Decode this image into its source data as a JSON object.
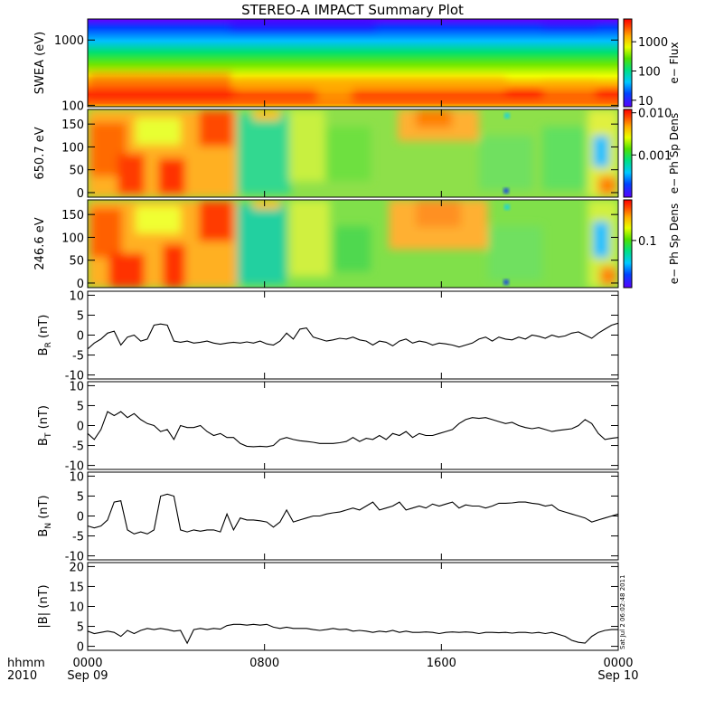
{
  "title": "STEREO-A IMPACT Summary Plot",
  "stamp": "Sat Jul  2 06:02:48 2011",
  "colors": {
    "axis": "#000000",
    "line": "#000000",
    "background": "#ffffff"
  },
  "x_axis": {
    "range": [
      0,
      24
    ],
    "ticks": [
      {
        "value": 0,
        "label": "0000",
        "sublabel": "Sep 09"
      },
      {
        "value": 8,
        "label": "0800",
        "sublabel": ""
      },
      {
        "value": 16,
        "label": "1600",
        "sublabel": ""
      },
      {
        "value": 24,
        "label": "0000",
        "sublabel": "Sep 10"
      }
    ],
    "corner_label": "hhmm",
    "corner_year": "2010"
  },
  "chart_data": [
    {
      "type": "heatmap",
      "ylabel": "SWEA (eV)",
      "y_scale": "log",
      "ylim": [
        95,
        2100
      ],
      "y_ticks": [
        {
          "value": 100,
          "label": "100"
        },
        {
          "value": 1000,
          "label": "1000"
        }
      ],
      "colorbar": {
        "label": "e− Flux",
        "scale": "log",
        "range": [
          6,
          6000
        ],
        "ticks": [
          {
            "value": 10,
            "label": "10"
          },
          {
            "value": 100,
            "label": "100"
          },
          {
            "value": 1000,
            "label": "1000"
          }
        ]
      }
    },
    {
      "type": "heatmap",
      "ylabel": "650.7 eV",
      "ylim": [
        -10,
        182
      ],
      "y_ticks": [
        {
          "value": 0,
          "label": "0"
        },
        {
          "value": 50,
          "label": "50"
        },
        {
          "value": 100,
          "label": "100"
        },
        {
          "value": 150,
          "label": "150"
        }
      ],
      "colorbar": {
        "label": "e− Ph Sp Dens",
        "scale": "log",
        "range": [
          0.0001,
          0.012
        ],
        "ticks": [
          {
            "value": 0.001,
            "label": "0.001"
          },
          {
            "value": 0.01,
            "label": "0.010"
          }
        ]
      }
    },
    {
      "type": "heatmap",
      "ylabel": "246.6 eV",
      "ylim": [
        -10,
        182
      ],
      "y_ticks": [
        {
          "value": 0,
          "label": "0"
        },
        {
          "value": 50,
          "label": "50"
        },
        {
          "value": 100,
          "label": "100"
        },
        {
          "value": 150,
          "label": "150"
        }
      ],
      "colorbar": {
        "label": "e− Ph Sp Dens",
        "scale": "log",
        "range": [
          0.02,
          0.4
        ],
        "ticks": [
          {
            "value": 0.1,
            "label": "0.1"
          }
        ]
      }
    },
    {
      "type": "line",
      "ylabel_main": "B",
      "ylabel_sub": "R",
      "ylabel_unit": " (nT)",
      "ylim": [
        -11,
        11
      ],
      "y_ticks": [
        -10,
        -5,
        0,
        5,
        10
      ],
      "x": [
        0,
        0.3,
        0.6,
        0.9,
        1.2,
        1.5,
        1.8,
        2.1,
        2.4,
        2.7,
        3.0,
        3.3,
        3.6,
        3.9,
        4.2,
        4.5,
        4.8,
        5.1,
        5.4,
        5.7,
        6.0,
        6.3,
        6.6,
        6.9,
        7.2,
        7.5,
        7.8,
        8.1,
        8.4,
        8.7,
        9.0,
        9.3,
        9.6,
        9.9,
        10.2,
        10.5,
        10.8,
        11.1,
        11.4,
        11.7,
        12.0,
        12.3,
        12.6,
        12.9,
        13.2,
        13.5,
        13.8,
        14.1,
        14.4,
        14.7,
        15.0,
        15.3,
        15.6,
        15.9,
        16.2,
        16.5,
        16.8,
        17.1,
        17.4,
        17.7,
        18.0,
        18.3,
        18.6,
        18.9,
        19.2,
        19.5,
        19.8,
        20.1,
        20.4,
        20.7,
        21.0,
        21.3,
        21.6,
        21.9,
        22.2,
        22.5,
        22.8,
        23.1,
        23.4,
        23.7,
        24.0
      ],
      "values": [
        -3.5,
        -2,
        -1,
        0.5,
        1,
        -2.5,
        -0.5,
        0,
        -1.5,
        -1,
        2.5,
        2.8,
        2.5,
        -1.5,
        -1.8,
        -1.5,
        -2,
        -1.8,
        -1.5,
        -2,
        -2.3,
        -2,
        -1.8,
        -2,
        -1.7,
        -2,
        -1.5,
        -2.2,
        -2.5,
        -1.5,
        0.5,
        -1,
        1.5,
        1.8,
        -0.5,
        -1,
        -1.5,
        -1.2,
        -0.8,
        -1,
        -0.5,
        -1.2,
        -1.5,
        -2.5,
        -1.5,
        -1.8,
        -2.7,
        -1.5,
        -1,
        -2,
        -1.5,
        -1.8,
        -2.5,
        -2,
        -2.2,
        -2.5,
        -3,
        -2.5,
        -2,
        -1,
        -0.5,
        -1.5,
        -0.5,
        -1,
        -1.2,
        -0.5,
        -1,
        0,
        -0.3,
        -0.8,
        0,
        -0.5,
        -0.2,
        0.5,
        0.8,
        0,
        -0.8,
        0.5,
        1.5,
        2.5,
        3
      ]
    },
    {
      "type": "line",
      "ylabel_main": "B",
      "ylabel_sub": "T",
      "ylabel_unit": " (nT)",
      "ylim": [
        -11,
        11
      ],
      "y_ticks": [
        -10,
        -5,
        0,
        5,
        10
      ],
      "x": [
        0,
        0.3,
        0.6,
        0.9,
        1.2,
        1.5,
        1.8,
        2.1,
        2.4,
        2.7,
        3.0,
        3.3,
        3.6,
        3.9,
        4.2,
        4.5,
        4.8,
        5.1,
        5.4,
        5.7,
        6.0,
        6.3,
        6.6,
        6.9,
        7.2,
        7.5,
        7.8,
        8.1,
        8.4,
        8.7,
        9.0,
        9.3,
        9.6,
        9.9,
        10.2,
        10.5,
        10.8,
        11.1,
        11.4,
        11.7,
        12.0,
        12.3,
        12.6,
        12.9,
        13.2,
        13.5,
        13.8,
        14.1,
        14.4,
        14.7,
        15.0,
        15.3,
        15.6,
        15.9,
        16.2,
        16.5,
        16.8,
        17.1,
        17.4,
        17.7,
        18.0,
        18.3,
        18.6,
        18.9,
        19.2,
        19.5,
        19.8,
        20.1,
        20.4,
        20.7,
        21.0,
        21.3,
        21.6,
        21.9,
        22.2,
        22.5,
        22.8,
        23.1,
        23.4,
        23.7,
        24.0
      ],
      "values": [
        -2,
        -3.5,
        -1,
        3.5,
        2.5,
        3.5,
        2,
        3,
        1.5,
        0.5,
        0,
        -1.5,
        -1,
        -3.5,
        0,
        -0.5,
        -0.5,
        0,
        -1.5,
        -2.5,
        -2,
        -3,
        -3,
        -4.5,
        -5.2,
        -5.3,
        -5.2,
        -5.3,
        -5,
        -3.5,
        -3,
        -3.5,
        -3.8,
        -4,
        -4.2,
        -4.5,
        -4.5,
        -4.5,
        -4.3,
        -4,
        -3,
        -4,
        -3.2,
        -3.5,
        -2.5,
        -3.5,
        -2,
        -2.5,
        -1.5,
        -3,
        -2,
        -2.5,
        -2.5,
        -2,
        -1.5,
        -1,
        0.5,
        1.5,
        2,
        1.8,
        2,
        1.5,
        1,
        0.5,
        0.8,
        0,
        -0.5,
        -0.8,
        -0.5,
        -1,
        -1.5,
        -1.2,
        -1,
        -0.8,
        0,
        1.5,
        0.5,
        -2,
        -3.5,
        -3.2,
        -3
      ]
    },
    {
      "type": "line",
      "ylabel_main": "B",
      "ylabel_sub": "N",
      "ylabel_unit": " (nT)",
      "ylim": [
        -11,
        11
      ],
      "y_ticks": [
        -10,
        -5,
        0,
        5,
        10
      ],
      "x": [
        0,
        0.3,
        0.6,
        0.9,
        1.2,
        1.5,
        1.8,
        2.1,
        2.4,
        2.7,
        3.0,
        3.3,
        3.6,
        3.9,
        4.2,
        4.5,
        4.8,
        5.1,
        5.4,
        5.7,
        6.0,
        6.3,
        6.6,
        6.9,
        7.2,
        7.5,
        7.8,
        8.1,
        8.4,
        8.7,
        9.0,
        9.3,
        9.6,
        9.9,
        10.2,
        10.5,
        10.8,
        11.1,
        11.4,
        11.7,
        12.0,
        12.3,
        12.6,
        12.9,
        13.2,
        13.5,
        13.8,
        14.1,
        14.4,
        14.7,
        15.0,
        15.3,
        15.6,
        15.9,
        16.2,
        16.5,
        16.8,
        17.1,
        17.4,
        17.7,
        18.0,
        18.3,
        18.6,
        18.9,
        19.2,
        19.5,
        19.8,
        20.1,
        20.4,
        20.7,
        21.0,
        21.3,
        21.6,
        21.9,
        22.2,
        22.5,
        22.8,
        23.1,
        23.4,
        23.7,
        24.0
      ],
      "values": [
        -2.5,
        -3,
        -2.5,
        -1,
        3.5,
        3.8,
        -3.5,
        -4.5,
        -4,
        -4.5,
        -3.5,
        5,
        5.5,
        5,
        -3.5,
        -4,
        -3.5,
        -3.8,
        -3.5,
        -3.5,
        -4,
        0.5,
        -3.5,
        -0.5,
        -1,
        -1,
        -1.2,
        -1.5,
        -2.8,
        -1.5,
        1.5,
        -1.5,
        -1,
        -0.5,
        0,
        0,
        0.5,
        0.8,
        1,
        1.5,
        2,
        1.5,
        2.5,
        3.5,
        1.5,
        2,
        2.5,
        3.5,
        1.5,
        2,
        2.5,
        2,
        3,
        2.5,
        3,
        3.5,
        2,
        2.8,
        2.5,
        2.5,
        2,
        2.5,
        3.2,
        3.2,
        3.3,
        3.5,
        3.5,
        3.2,
        3,
        2.5,
        2.8,
        1.5,
        1,
        0.5,
        0,
        -0.5,
        -1.5,
        -1,
        -0.5,
        0,
        0.5
      ]
    },
    {
      "type": "line",
      "ylabel_main": "|B|",
      "ylabel_sub": "",
      "ylabel_unit": " (nT)",
      "ylim": [
        -1,
        21
      ],
      "y_ticks": [
        0,
        5,
        10,
        15,
        20
      ],
      "x": [
        0,
        0.3,
        0.6,
        0.9,
        1.2,
        1.5,
        1.8,
        2.1,
        2.4,
        2.7,
        3.0,
        3.3,
        3.6,
        3.9,
        4.2,
        4.5,
        4.8,
        5.1,
        5.4,
        5.7,
        6.0,
        6.3,
        6.6,
        6.9,
        7.2,
        7.5,
        7.8,
        8.1,
        8.4,
        8.7,
        9.0,
        9.3,
        9.6,
        9.9,
        10.2,
        10.5,
        10.8,
        11.1,
        11.4,
        11.7,
        12.0,
        12.3,
        12.6,
        12.9,
        13.2,
        13.5,
        13.8,
        14.1,
        14.4,
        14.7,
        15.0,
        15.3,
        15.6,
        15.9,
        16.2,
        16.5,
        16.8,
        17.1,
        17.4,
        17.7,
        18.0,
        18.3,
        18.6,
        18.9,
        19.2,
        19.5,
        19.8,
        20.1,
        20.4,
        20.7,
        21.0,
        21.3,
        21.6,
        21.9,
        22.2,
        22.5,
        22.8,
        23.1,
        23.4,
        23.7,
        24.0
      ],
      "values": [
        3.8,
        3.2,
        3.5,
        3.8,
        3.5,
        2.5,
        4,
        3.2,
        4,
        4.5,
        4.2,
        4.5,
        4.2,
        3.8,
        4,
        0.8,
        4.2,
        4.5,
        4.2,
        4.5,
        4.3,
        5.2,
        5.5,
        5.5,
        5.3,
        5.5,
        5.3,
        5.5,
        4.8,
        4.5,
        4.8,
        4.5,
        4.5,
        4.5,
        4.2,
        4,
        4.2,
        4.5,
        4.2,
        4.3,
        3.8,
        4,
        3.8,
        3.5,
        3.8,
        3.6,
        4,
        3.5,
        3.8,
        3.5,
        3.5,
        3.6,
        3.5,
        3.2,
        3.5,
        3.6,
        3.5,
        3.6,
        3.5,
        3.2,
        3.5,
        3.5,
        3.4,
        3.5,
        3.3,
        3.5,
        3.5,
        3.3,
        3.5,
        3.2,
        3.5,
        3,
        2.5,
        1.5,
        1,
        0.8,
        2.5,
        3.5,
        4,
        4.2,
        4.2
      ]
    }
  ]
}
